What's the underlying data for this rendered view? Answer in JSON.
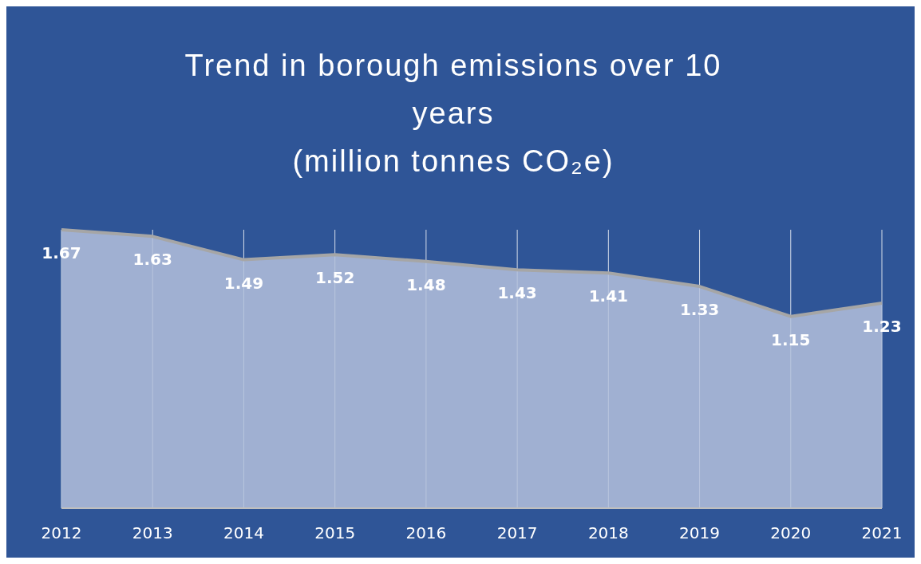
{
  "chart_data": {
    "type": "area",
    "title": "Trend in borough emissions over 10 years\n(million tonnes CO₂e)",
    "categories": [
      "2012",
      "2013",
      "2014",
      "2015",
      "2016",
      "2017",
      "2018",
      "2019",
      "2020",
      "2021"
    ],
    "values": [
      1.67,
      1.63,
      1.49,
      1.52,
      1.48,
      1.43,
      1.41,
      1.33,
      1.15,
      1.23
    ],
    "color": "#b4c1dc",
    "data_labels": true,
    "grid": "x"
  }
}
